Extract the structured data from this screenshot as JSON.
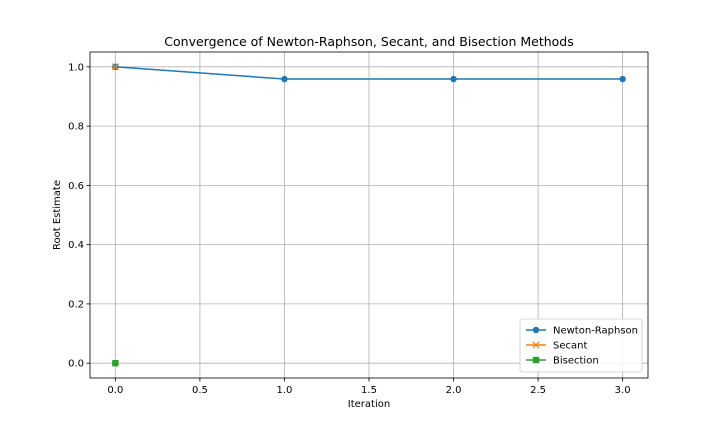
{
  "chart_data": {
    "type": "line",
    "title": "Convergence of Newton-Raphson, Secant, and Bisection Methods",
    "xlabel": "Iteration",
    "ylabel": "Root Estimate",
    "xlim": [
      -0.15,
      3.15
    ],
    "ylim": [
      -0.05,
      1.05
    ],
    "xticks": [
      0.0,
      0.5,
      1.0,
      1.5,
      2.0,
      2.5,
      3.0
    ],
    "xtick_labels": [
      "0.0",
      "0.5",
      "1.0",
      "1.5",
      "2.0",
      "2.5",
      "3.0"
    ],
    "yticks": [
      0.0,
      0.2,
      0.4,
      0.6,
      0.8,
      1.0
    ],
    "ytick_labels": [
      "0.0",
      "0.2",
      "0.4",
      "0.6",
      "0.8",
      "1.0"
    ],
    "grid": true,
    "legend_position": "lower right",
    "series": [
      {
        "name": "Newton-Raphson",
        "color": "#1f77b4",
        "marker": "circle",
        "x": [
          0,
          1,
          2,
          3
        ],
        "y": [
          1.0,
          0.9587,
          0.9587,
          0.9587
        ]
      },
      {
        "name": "Secant",
        "color": "#ff7f0e",
        "marker": "x",
        "x": [
          0
        ],
        "y": [
          1.0
        ]
      },
      {
        "name": "Bisection",
        "color": "#2ca02c",
        "marker": "square",
        "x": [
          0
        ],
        "y": [
          0.0
        ]
      }
    ]
  }
}
